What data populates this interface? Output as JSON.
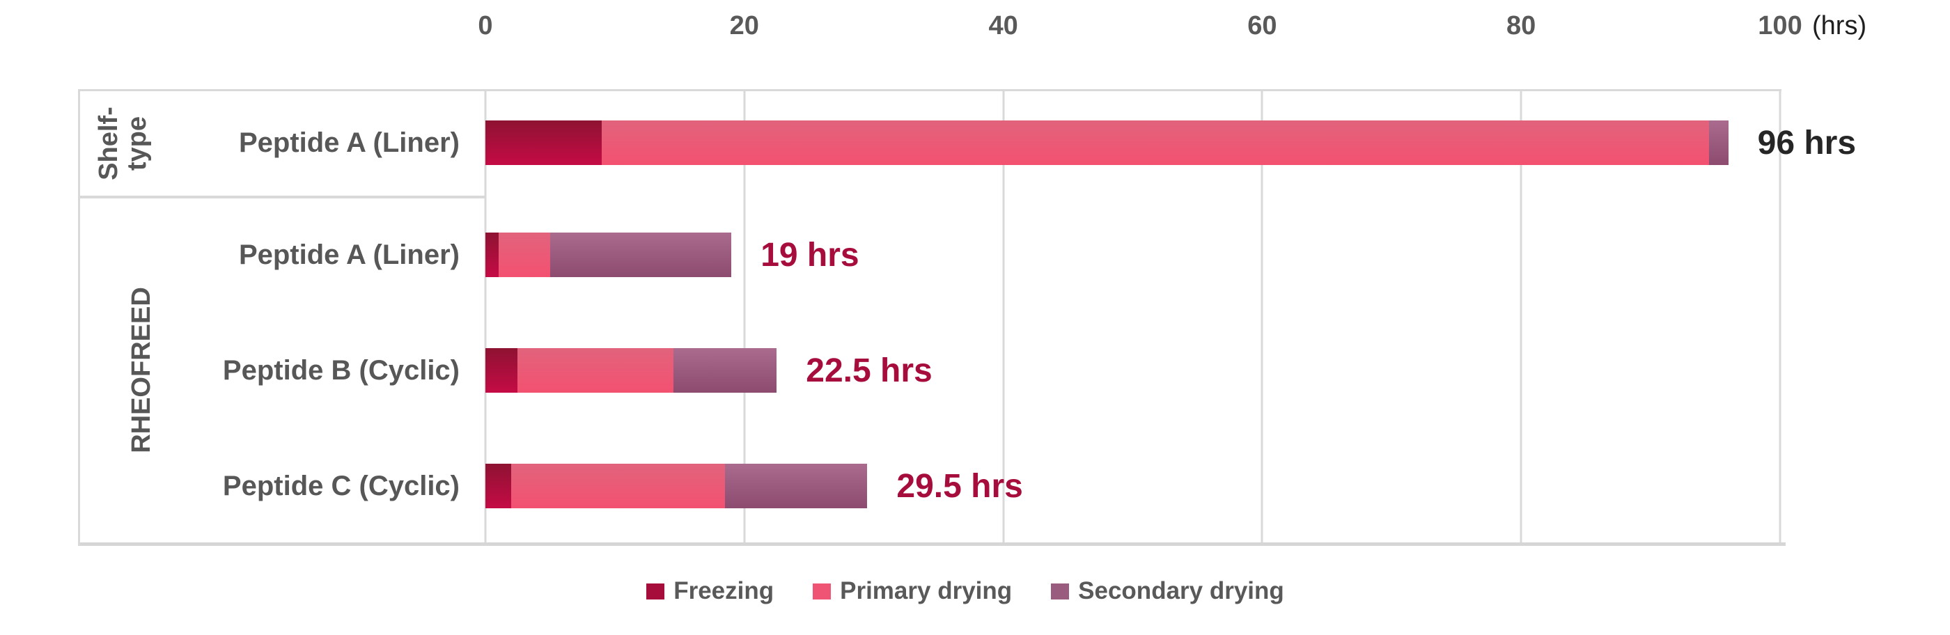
{
  "axis": {
    "ticks": [
      "0",
      "20",
      "40",
      "60",
      "80",
      "100"
    ],
    "tick_values": [
      0,
      20,
      40,
      60,
      80,
      100
    ],
    "unit_label": "(hrs)"
  },
  "groups": {
    "shelf": {
      "label": "Shelf-type",
      "line1": "Shelf-",
      "line2": "type"
    },
    "rheofreed": {
      "label": "RHEOFREED"
    }
  },
  "chart_data": {
    "type": "bar",
    "orientation": "horizontal",
    "stacked": true,
    "x_unit": "hrs",
    "xlim": [
      0,
      100
    ],
    "x_ticks": [
      0,
      20,
      40,
      60,
      80,
      100
    ],
    "series_names": [
      "Freezing",
      "Primary drying",
      "Secondary drying"
    ],
    "rows": [
      {
        "group": "Shelf-type",
        "label": "Peptide A (Liner)",
        "values": [
          9,
          85.5,
          1.5
        ],
        "total": 96,
        "total_label": "96 hrs",
        "total_label_color": "#262626"
      },
      {
        "group": "RHEOFREED",
        "label": "Peptide A (Liner)",
        "values": [
          1,
          4,
          14
        ],
        "total": 19,
        "total_label": "19 hrs",
        "total_label_color": "#A60C3C"
      },
      {
        "group": "RHEOFREED",
        "label": "Peptide B (Cyclic)",
        "values": [
          2.5,
          12,
          8
        ],
        "total": 22.5,
        "total_label": "22.5 hrs",
        "total_label_color": "#A60C3C"
      },
      {
        "group": "RHEOFREED",
        "label": "Peptide C (Cyclic)",
        "values": [
          2,
          16.5,
          11
        ],
        "total": 29.5,
        "total_label": "29.5 hrs",
        "total_label_color": "#A60C3C"
      }
    ]
  },
  "legend": [
    {
      "label": "Freezing",
      "color": "#A60D3B"
    },
    {
      "label": "Primary drying",
      "color": "#EF5474"
    },
    {
      "label": "Secondary drying",
      "color": "#9A5C7E"
    }
  ],
  "colors": {
    "freezing_gradient": [
      "#8E1232",
      "#C50B45"
    ],
    "primary_gradient": [
      "#E2637C",
      "#F35170"
    ],
    "secondary_gradient": [
      "#AA6B8E",
      "#8C4B6F"
    ],
    "gridline": "#D9D9D9",
    "tick_text": "#595959",
    "label_text": "#575757",
    "unit_text": "#1F1F1F"
  }
}
